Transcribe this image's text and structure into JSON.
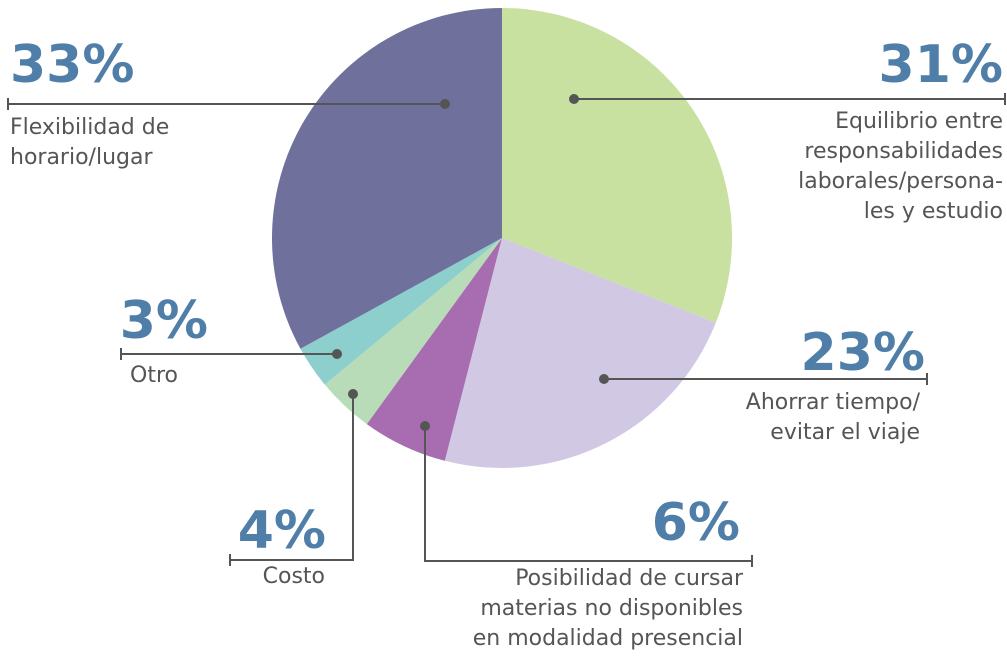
{
  "chart_data": {
    "type": "pie",
    "categories": [
      [
        "Equilibrio entre",
        "responsabilidades",
        "laborales/persona-",
        "les y estudio"
      ],
      [
        "Ahorrar tiempo/",
        "evitar el viaje"
      ],
      [
        "Posibilidad de cursar",
        "materias no disponibles",
        "en modalidad presencial"
      ],
      [
        "Costo"
      ],
      [
        "Otro"
      ],
      [
        "Flexibilidad de",
        "horario/lugar"
      ]
    ],
    "values": [
      31,
      23,
      6,
      4,
      3,
      33
    ],
    "value_labels": [
      "31%",
      "23%",
      "6%",
      "4%",
      "3%",
      "33%"
    ],
    "colors": [
      "#c8e0a0",
      "#d1c8e4",
      "#a86db0",
      "#b8dcb8",
      "#8ccfcc",
      "#6f709c"
    ]
  }
}
